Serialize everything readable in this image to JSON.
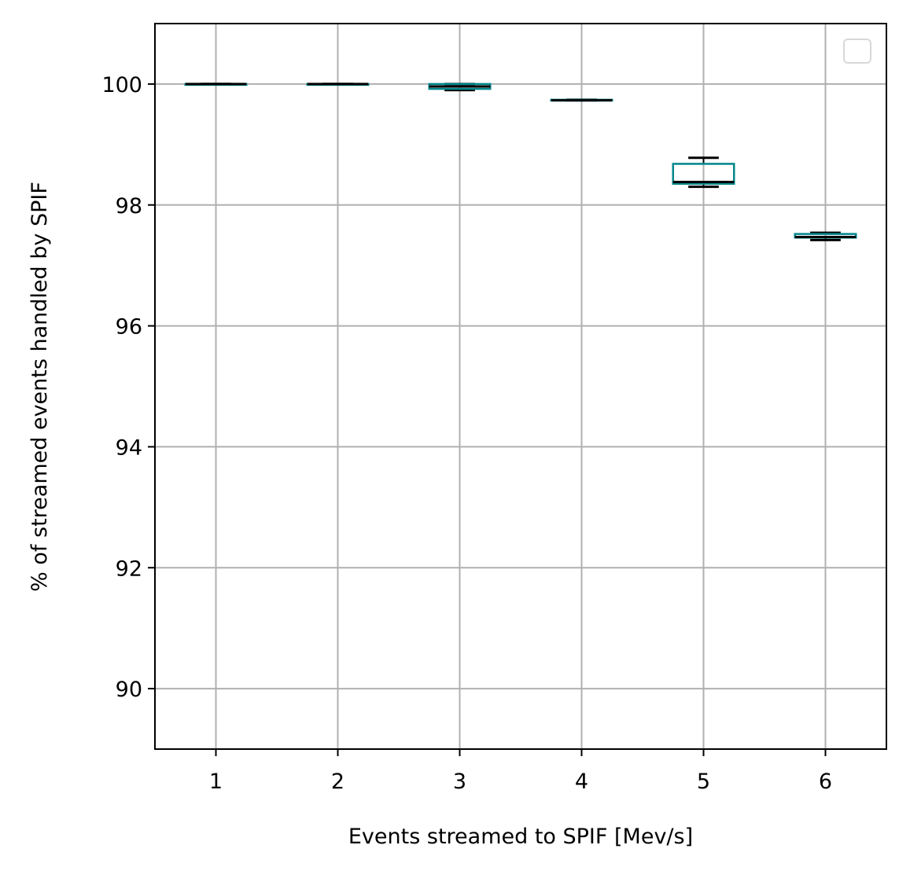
{
  "chart_data": {
    "type": "box",
    "title": "",
    "xlabel": "Events streamed to SPIF [Mev/s]",
    "ylabel": "% of streamed events handled by SPIF",
    "x_ticks": [
      "1",
      "2",
      "3",
      "4",
      "5",
      "6"
    ],
    "y_ticks": [
      "90",
      "92",
      "94",
      "96",
      "98",
      "100"
    ],
    "xlim": [
      0.5,
      6.5
    ],
    "ylim": [
      89.0,
      101.0
    ],
    "grid": true,
    "legend": {
      "placement": "upper right",
      "entries": []
    },
    "colors": {
      "box": "#00868b",
      "median": "#000000",
      "whisker": "#000000",
      "grid": "#b0b0b0",
      "axes": "#000000"
    },
    "boxes": [
      {
        "x": 1,
        "whislo": 100.0,
        "q1": 100.0,
        "median": 100.0,
        "q3": 100.0,
        "whishi": 100.0
      },
      {
        "x": 2,
        "whislo": 100.0,
        "q1": 100.0,
        "median": 100.0,
        "q3": 100.0,
        "whishi": 100.0
      },
      {
        "x": 3,
        "whislo": 99.9,
        "q1": 99.92,
        "median": 99.96,
        "q3": 100.0,
        "whishi": 100.0
      },
      {
        "x": 4,
        "whislo": 99.73,
        "q1": 99.73,
        "median": 99.73,
        "q3": 99.74,
        "whishi": 99.74
      },
      {
        "x": 5,
        "whislo": 98.3,
        "q1": 98.35,
        "median": 98.38,
        "q3": 98.68,
        "whishi": 98.78
      },
      {
        "x": 6,
        "whislo": 97.42,
        "q1": 97.46,
        "median": 97.47,
        "q3": 97.52,
        "whishi": 97.54
      }
    ]
  }
}
